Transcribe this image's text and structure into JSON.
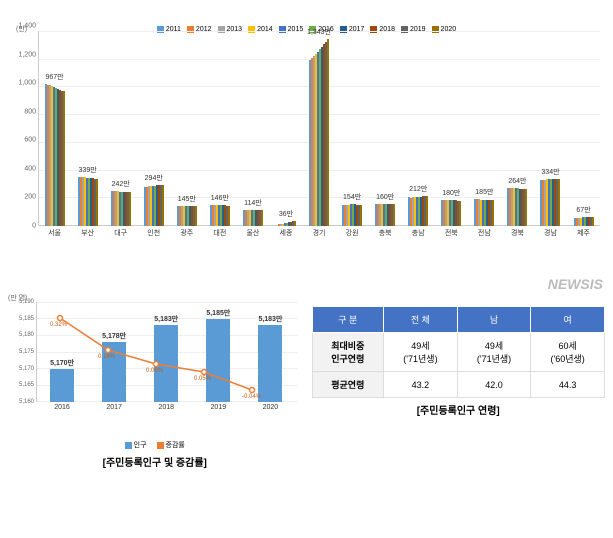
{
  "top_chart": {
    "type": "bar",
    "y_unit": "(만)",
    "ylim": [
      0,
      1400
    ],
    "ytick_step": 200,
    "yticks": [
      0,
      200,
      400,
      600,
      800,
      1000,
      1200,
      1400
    ],
    "years": [
      "2011",
      "2012",
      "2013",
      "2014",
      "2015",
      "2016",
      "2017",
      "2018",
      "2019",
      "2020"
    ],
    "year_colors": [
      "#5b9bd5",
      "#ed7d31",
      "#a5a5a5",
      "#ffc000",
      "#4472c4",
      "#70ad47",
      "#255e91",
      "#9e480e",
      "#636363",
      "#997300"
    ],
    "regions": [
      {
        "name": "서울",
        "label": "967만",
        "values": [
          1020,
          1015,
          1010,
          1005,
          998,
          992,
          985,
          978,
          972,
          967
        ]
      },
      {
        "name": "부산",
        "label": "339만",
        "values": [
          355,
          353,
          351,
          349,
          347,
          345,
          343,
          342,
          340,
          339
        ]
      },
      {
        "name": "대구",
        "label": "242만",
        "values": [
          251,
          250,
          249,
          248,
          247,
          246,
          245,
          244,
          243,
          242
        ]
      },
      {
        "name": "인천",
        "label": "294만",
        "values": [
          280,
          282,
          284,
          286,
          288,
          290,
          292,
          293,
          294,
          294
        ]
      },
      {
        "name": "광주",
        "label": "145만",
        "values": [
          147,
          147,
          147,
          147,
          147,
          147,
          146,
          146,
          146,
          145
        ]
      },
      {
        "name": "대전",
        "label": "146만",
        "values": [
          152,
          152,
          151,
          151,
          150,
          150,
          149,
          148,
          147,
          146
        ]
      },
      {
        "name": "울산",
        "label": "114만",
        "values": [
          113,
          114,
          115,
          116,
          117,
          117,
          116,
          116,
          115,
          114
        ]
      },
      {
        "name": "세종",
        "label": "36만",
        "values": [
          0,
          11,
          12,
          16,
          21,
          24,
          28,
          31,
          34,
          36
        ]
      },
      {
        "name": "경기",
        "label": "1,343만",
        "values": [
          1190,
          1209,
          1223,
          1236,
          1252,
          1272,
          1287,
          1308,
          1324,
          1343
        ]
      },
      {
        "name": "강원",
        "label": "154만",
        "values": [
          154,
          154,
          154,
          154,
          155,
          155,
          155,
          154,
          154,
          154
        ]
      },
      {
        "name": "충북",
        "label": "160만",
        "values": [
          156,
          157,
          157,
          158,
          158,
          159,
          159,
          160,
          160,
          160
        ]
      },
      {
        "name": "충남",
        "label": "212만",
        "values": [
          210,
          203,
          205,
          206,
          208,
          210,
          211,
          213,
          212,
          212
        ]
      },
      {
        "name": "전북",
        "label": "180만",
        "values": [
          187,
          187,
          187,
          187,
          187,
          186,
          185,
          184,
          182,
          180
        ]
      },
      {
        "name": "전남",
        "label": "185만",
        "values": [
          191,
          191,
          191,
          190,
          190,
          190,
          190,
          188,
          187,
          185
        ]
      },
      {
        "name": "경북",
        "label": "264만",
        "values": [
          270,
          270,
          270,
          270,
          270,
          270,
          269,
          268,
          267,
          264
        ]
      },
      {
        "name": "경남",
        "label": "334만",
        "values": [
          331,
          332,
          333,
          334,
          337,
          337,
          338,
          337,
          336,
          334
        ]
      },
      {
        "name": "제주",
        "label": "67만",
        "values": [
          58,
          58,
          59,
          61,
          62,
          64,
          66,
          67,
          67,
          67
        ]
      }
    ]
  },
  "combo_chart": {
    "type": "line+bar",
    "y_unit": "(만 명)",
    "ylim": [
      5160,
      5190
    ],
    "yticks": [
      5160,
      5165,
      5170,
      5175,
      5180,
      5185,
      5190
    ],
    "bar_color": "#5b9bd5",
    "line_color": "#ed7d31",
    "years": [
      "2016",
      "2017",
      "2018",
      "2019",
      "2020"
    ],
    "bar_labels": [
      "5,170만",
      "5,178만",
      "5,183만",
      "5,185만",
      "5,183만"
    ],
    "bar_values": [
      5170,
      5178,
      5183,
      5185,
      5183
    ],
    "line_labels": [
      "0.32%",
      "0.16%",
      "0.09%",
      "0.05%",
      "-0.04%"
    ],
    "line_values": [
      0.32,
      0.16,
      0.09,
      0.05,
      -0.04
    ],
    "line_y_range": [
      -0.1,
      0.4
    ],
    "legend": {
      "bar": "인구",
      "line": "증감률"
    }
  },
  "captions": {
    "left": "[주민등록인구 및 증감률]",
    "right": "[주민등록인구 연령]"
  },
  "age_table": {
    "headers": [
      "구 분",
      "전 체",
      "남",
      "여"
    ],
    "rows": [
      {
        "label": "최대비중\n인구연령",
        "cells": [
          "49세\n('71년생)",
          "49세\n('71년생)",
          "60세\n('60년생)"
        ]
      },
      {
        "label": "평균연령",
        "cells": [
          "43.2",
          "42.0",
          "44.3"
        ]
      }
    ],
    "header_bg": "#4472c4",
    "header_color": "#ffffff"
  },
  "watermark": "NEWSIS"
}
